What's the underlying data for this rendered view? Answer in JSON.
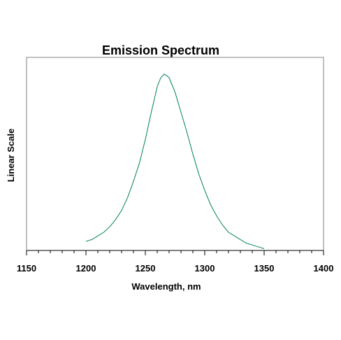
{
  "chart_data": {
    "type": "line",
    "title": "Emission Spectrum",
    "xlabel": "Wavelength, nm",
    "ylabel": "Linear Scale",
    "xlim": [
      1150,
      1400
    ],
    "ylim": [
      0,
      1.0
    ],
    "x_ticks": [
      "1150",
      "1200",
      "1250",
      "1300",
      "1350",
      "1400"
    ],
    "y_ticks_shown": false,
    "grid": false,
    "legend": "none",
    "series_color": "#008060",
    "series": [
      {
        "x": [
          1200,
          1205,
          1210,
          1215,
          1220,
          1225,
          1230,
          1235,
          1240,
          1245,
          1250,
          1255,
          1260,
          1263,
          1266,
          1270,
          1275,
          1280,
          1285,
          1290,
          1295,
          1300,
          1305,
          1310,
          1315,
          1320,
          1325,
          1330,
          1335,
          1340,
          1345,
          1350
        ],
        "y": [
          0.05,
          0.06,
          0.08,
          0.1,
          0.13,
          0.17,
          0.22,
          0.29,
          0.38,
          0.48,
          0.61,
          0.76,
          0.9,
          0.95,
          0.97,
          0.95,
          0.87,
          0.76,
          0.65,
          0.53,
          0.42,
          0.33,
          0.25,
          0.19,
          0.14,
          0.1,
          0.08,
          0.06,
          0.04,
          0.03,
          0.02,
          0.01
        ]
      }
    ]
  }
}
